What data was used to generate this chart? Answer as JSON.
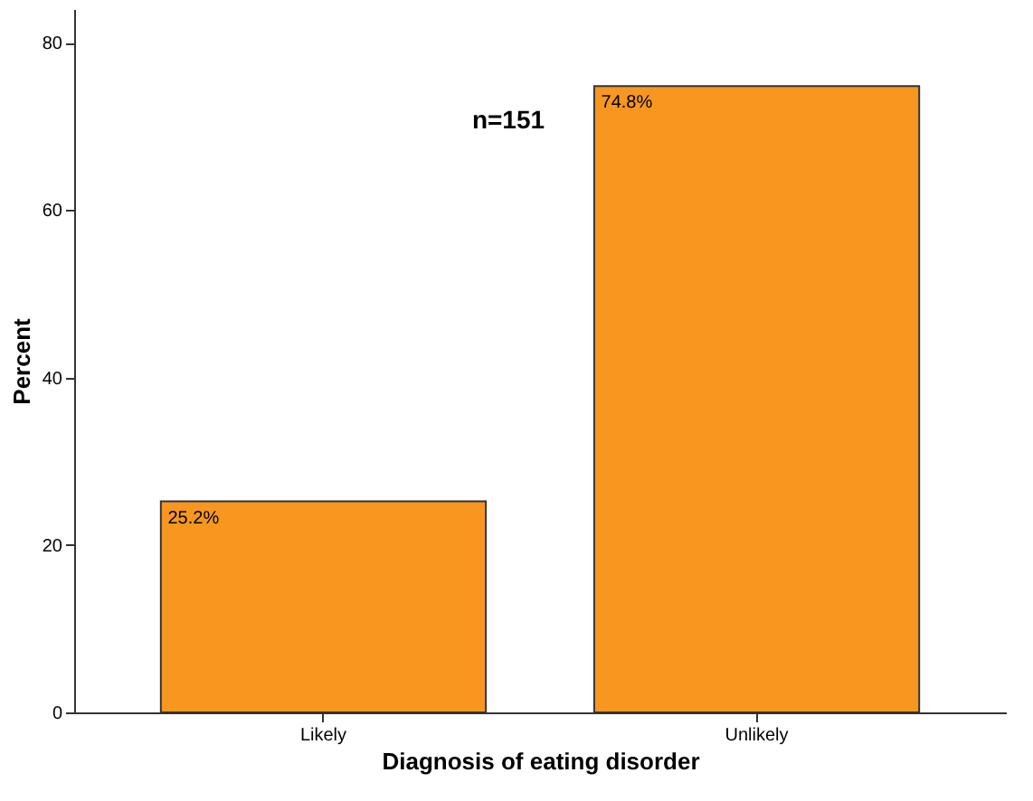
{
  "chart_data": {
    "type": "bar",
    "xlabel": "Diagnosis of eating disorder",
    "ylabel": "Percent",
    "categories": [
      "Likely",
      "Unlikely"
    ],
    "values": [
      25.2,
      74.8
    ],
    "value_labels": [
      "25.2%",
      "74.8%"
    ],
    "color": "#f7971f",
    "ylim": [
      0,
      84
    ],
    "yticks": [
      0,
      20,
      40,
      60,
      80
    ],
    "grid": false,
    "annotations": [
      "n=151"
    ]
  }
}
